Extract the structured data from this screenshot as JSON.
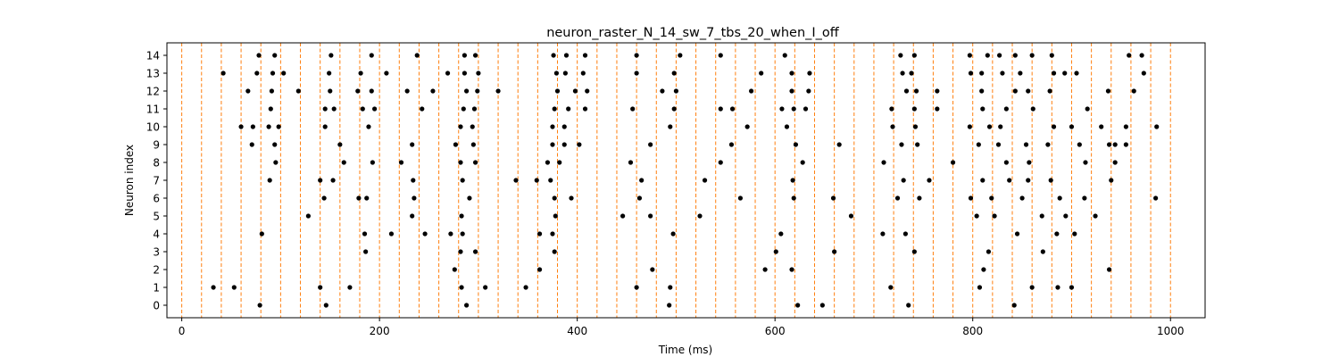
{
  "chart_data": {
    "type": "scatter",
    "title": "neuron_raster_N_14_sw_7_tbs_20_when_I_off",
    "xlabel": "Time (ms)",
    "ylabel": "Neuron index",
    "xlim": [
      -15,
      1035
    ],
    "ylim": [
      -0.7,
      14.7
    ],
    "x_ticks": [
      0,
      200,
      400,
      600,
      800,
      1000
    ],
    "y_ticks": [
      0,
      1,
      2,
      3,
      4,
      5,
      6,
      7,
      8,
      9,
      10,
      11,
      12,
      13,
      14
    ],
    "grid": false,
    "marker_color": "#000000",
    "vline_color": "#ff7f0e",
    "vlines": [
      0,
      20,
      40,
      60,
      80,
      100,
      120,
      140,
      160,
      180,
      200,
      220,
      240,
      260,
      280,
      300,
      320,
      340,
      360,
      380,
      400,
      420,
      440,
      460,
      480,
      500,
      520,
      540,
      560,
      580,
      600,
      620,
      640,
      660,
      680,
      700,
      720,
      740,
      760,
      780,
      800,
      820,
      840,
      860,
      880,
      900,
      920,
      940,
      960,
      980,
      1000
    ],
    "spikes": [
      {
        "neuron": 14,
        "times": [
          78,
          94,
          151,
          192,
          238,
          286,
          297,
          376,
          389,
          408,
          460,
          504,
          545,
          610,
          727,
          741,
          797,
          815,
          827,
          843,
          860,
          880,
          958,
          971
        ]
      },
      {
        "neuron": 13,
        "times": [
          42,
          76,
          92,
          103,
          149,
          181,
          207,
          269,
          286,
          300,
          379,
          388,
          406,
          460,
          498,
          586,
          617,
          635,
          729,
          738,
          798,
          809,
          830,
          848,
          893,
          882,
          905,
          973
        ]
      },
      {
        "neuron": 12,
        "times": [
          67,
          91,
          118,
          150,
          178,
          192,
          228,
          254,
          288,
          299,
          320,
          380,
          398,
          410,
          486,
          500,
          576,
          617,
          634,
          733,
          743,
          764,
          809,
          843,
          856,
          878,
          937,
          963
        ]
      },
      {
        "neuron": 11,
        "times": [
          90,
          145,
          154,
          183,
          195,
          243,
          285,
          296,
          377,
          391,
          408,
          456,
          498,
          545,
          557,
          607,
          619,
          631,
          718,
          741,
          764,
          810,
          834,
          861,
          916
        ]
      },
      {
        "neuron": 10,
        "times": [
          60,
          72,
          88,
          98,
          145,
          189,
          282,
          294,
          375,
          387,
          494,
          572,
          612,
          719,
          742,
          797,
          817,
          828,
          882,
          900,
          930,
          955,
          986
        ]
      },
      {
        "neuron": 9,
        "times": [
          71,
          94,
          160,
          233,
          277,
          295,
          375,
          387,
          402,
          474,
          556,
          621,
          665,
          728,
          744,
          806,
          826,
          854,
          876,
          908,
          938,
          944,
          955
        ]
      },
      {
        "neuron": 8,
        "times": [
          95,
          164,
          193,
          222,
          282,
          297,
          370,
          382,
          454,
          545,
          628,
          710,
          780,
          834,
          857,
          914,
          944
        ]
      },
      {
        "neuron": 7,
        "times": [
          89,
          140,
          153,
          234,
          284,
          338,
          359,
          373,
          465,
          529,
          618,
          730,
          756,
          810,
          837,
          856,
          879,
          940
        ]
      },
      {
        "neuron": 6,
        "times": [
          144,
          179,
          187,
          235,
          291,
          377,
          394,
          463,
          565,
          619,
          659,
          724,
          746,
          798,
          819,
          850,
          888,
          913,
          985
        ]
      },
      {
        "neuron": 5,
        "times": [
          128,
          233,
          283,
          378,
          446,
          474,
          524,
          677,
          804,
          822,
          870,
          894,
          924
        ]
      },
      {
        "neuron": 4,
        "times": [
          81,
          185,
          212,
          246,
          272,
          284,
          362,
          375,
          497,
          606,
          709,
          732,
          845,
          885,
          903
        ]
      },
      {
        "neuron": 3,
        "times": [
          186,
          282,
          297,
          377,
          601,
          660,
          741,
          816,
          871
        ]
      },
      {
        "neuron": 2,
        "times": [
          276,
          362,
          476,
          590,
          617,
          811,
          938
        ]
      },
      {
        "neuron": 1,
        "times": [
          32,
          53,
          140,
          170,
          283,
          307,
          348,
          460,
          494,
          717,
          807,
          860,
          886,
          900
        ]
      },
      {
        "neuron": 0,
        "times": [
          79,
          146,
          288,
          493,
          623,
          648,
          735,
          842
        ]
      }
    ]
  }
}
